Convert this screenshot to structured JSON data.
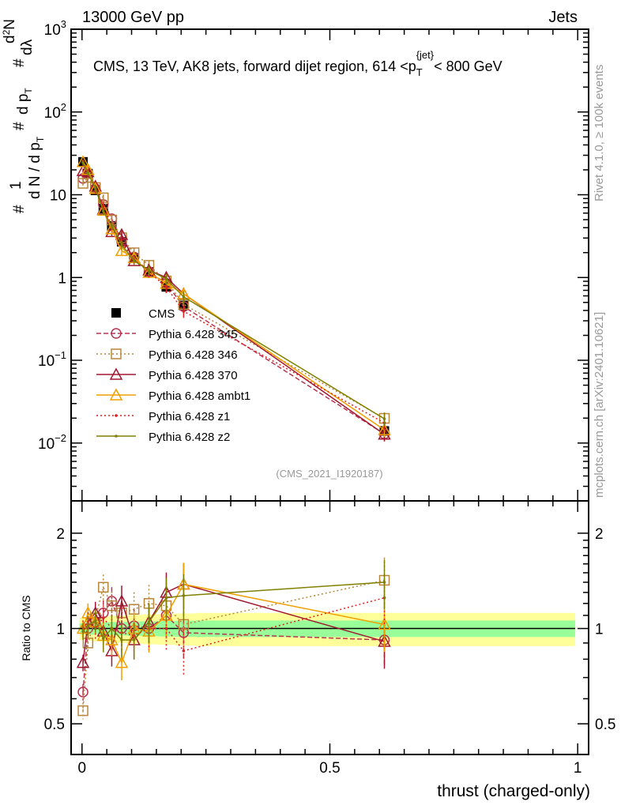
{
  "header": {
    "left": "13000 GeV pp",
    "right": "Jets"
  },
  "side_labels": {
    "rivet": "Rivet 4.1.0, ≥ 100k events",
    "mcplots": "mcplots.cern.ch [arXiv:2401.10621]"
  },
  "chart_data": [
    {
      "type": "line",
      "title": "CMS, 13 TeV, AK8 jets, forward dijet region, 614 < p_T^{jet} < 800 GeV",
      "title_parts": {
        "pre": "CMS, 13 TeV, AK8 jets, forward dijet region, 614 <p",
        "sub": "T",
        "sup": "{jet}",
        "post": "< 800 GeV"
      },
      "ylabel": "1/(dN/dp_T) d^2N/(dp_T dλ)",
      "ylabel_parts": {
        "num_hash": "#",
        "one": "1",
        "den": "d N / d p",
        "den_sub": "T",
        "d2n": "d",
        "d2n_sup": "2",
        "n": "N",
        "den2": "d p",
        "den2_sub": "T",
        "dl": "dλ"
      },
      "yscale": "log",
      "ylim": [
        0.002,
        1000
      ],
      "xlim": [
        -0.022,
        1.022
      ],
      "yticks": [
        0.01,
        0.1,
        1,
        10,
        100,
        1000
      ],
      "annotation": "(CMS_2021_I1920187)",
      "legend_position": "left-middle",
      "x": [
        0.002,
        0.012,
        0.027,
        0.043,
        0.06,
        0.08,
        0.105,
        0.135,
        0.17,
        0.205,
        0.61
      ],
      "series": [
        {
          "name": "CMS",
          "color": "#000000",
          "marker": "square",
          "line": "none",
          "values": [
            25,
            18,
            11.3,
            6.8,
            4.2,
            2.7,
            1.73,
            1.17,
            0.77,
            0.46,
            0.014
          ]
        },
        {
          "name": "Pythia 6.428 345",
          "color": "#b83450",
          "marker": "circle",
          "line": "dashed",
          "ratio": [
            0.63,
            1.0,
            1.05,
            1.12,
            1.22,
            1.0,
            1.02,
            1.0,
            1.1,
            0.97,
            0.92
          ]
        },
        {
          "name": "Pythia 6.428 346",
          "color": "#b8863b",
          "marker": "square-open",
          "line": "dotted",
          "ratio": [
            0.55,
            0.9,
            1.08,
            1.35,
            1.18,
            1.12,
            1.15,
            1.2,
            1.18,
            1.03,
            1.42
          ]
        },
        {
          "name": "Pythia 6.428 370",
          "color": "#a01830",
          "marker": "triangle",
          "line": "solid",
          "ratio": [
            0.78,
            1.05,
            1.12,
            0.98,
            0.85,
            1.22,
            0.92,
            1.05,
            1.3,
            1.38,
            0.91
          ]
        },
        {
          "name": "Pythia 6.428 ambt1",
          "color": "#f0a000",
          "marker": "triangle",
          "line": "solid",
          "ratio": [
            1.0,
            1.12,
            1.05,
            0.95,
            0.92,
            0.78,
            1.0,
            0.98,
            1.1,
            1.38,
            1.03
          ]
        },
        {
          "name": "Pythia 6.428 z1",
          "color": "#e02020",
          "marker": "dot",
          "line": "dotted",
          "ratio": [
            1.0,
            1.05,
            1.0,
            1.08,
            1.0,
            0.97,
            0.95,
            1.0,
            1.0,
            0.85,
            1.25
          ]
        },
        {
          "name": "Pythia 6.428 z2",
          "color": "#808000",
          "marker": "dot",
          "line": "solid",
          "ratio": [
            0.98,
            1.02,
            1.06,
            0.93,
            1.0,
            0.92,
            0.92,
            1.05,
            1.25,
            1.27,
            1.4
          ]
        }
      ]
    },
    {
      "type": "line",
      "ylabel": "Ratio to CMS",
      "xlabel": "thrust (charged-only)",
      "yscale": "log",
      "ylim": [
        0.4,
        2.53
      ],
      "yticks": [
        0.5,
        1,
        2
      ],
      "ytick_labels": [
        "0.5",
        "1",
        "2"
      ],
      "xticks": [
        0,
        0.5,
        1
      ],
      "xtick_labels": [
        "0",
        "0.5",
        "1"
      ],
      "band_inner_rel": 0.04,
      "band_outer_rel": 0.08,
      "band_range": [
        -0.005,
        0.995
      ]
    }
  ]
}
